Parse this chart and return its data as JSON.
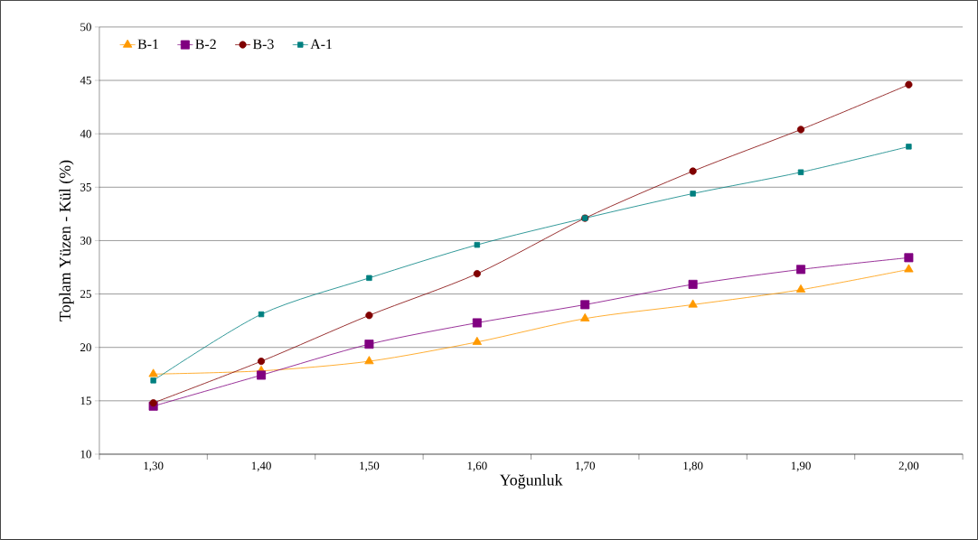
{
  "chart_data": {
    "type": "line",
    "xlabel": "Yoğunluk",
    "ylabel": "Toplam Yüzen - Kül  (%)",
    "categories": [
      "1,30",
      "1,40",
      "1,50",
      "1,60",
      "1,70",
      "1,80",
      "1,90",
      "2,00"
    ],
    "series": [
      {
        "name": "B-1",
        "color": "#ff9900",
        "marker": "triangle",
        "values": [
          17.5,
          17.8,
          18.7,
          20.5,
          22.7,
          24.0,
          25.4,
          27.3
        ]
      },
      {
        "name": "B-2",
        "color": "#800080",
        "marker": "square",
        "values": [
          14.5,
          17.4,
          20.3,
          22.3,
          24.0,
          25.9,
          27.3,
          28.4
        ]
      },
      {
        "name": "B-3",
        "color": "#800000",
        "marker": "circle",
        "values": [
          14.8,
          18.7,
          23.0,
          26.9,
          32.1,
          36.5,
          40.4,
          44.6
        ]
      },
      {
        "name": "A-1",
        "color": "#008080",
        "marker": "square",
        "values": [
          16.9,
          23.1,
          26.5,
          29.6,
          32.1,
          34.4,
          36.4,
          38.8
        ]
      }
    ],
    "ylim": [
      10,
      50
    ],
    "yticks": [
      10,
      15,
      20,
      25,
      30,
      35,
      40,
      45,
      50
    ],
    "grid": "y",
    "legend": "top left",
    "line_style": "solid"
  }
}
